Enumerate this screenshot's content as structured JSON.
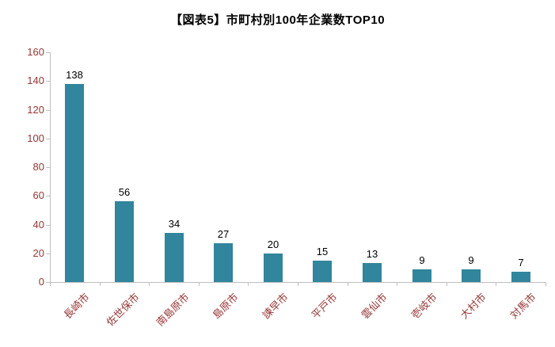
{
  "chart_data": {
    "type": "bar",
    "title": "【図表5】市町村別100年企業数TOP10",
    "categories": [
      "長崎市",
      "佐世保市",
      "南島原市",
      "島原市",
      "諫早市",
      "平戸市",
      "雲仙市",
      "壱岐市",
      "大村市",
      "対馬市"
    ],
    "values": [
      138,
      56,
      34,
      27,
      20,
      15,
      13,
      9,
      9,
      7
    ],
    "xlabel": "",
    "ylabel": "",
    "ylim": [
      0,
      160
    ],
    "ytick_step": 20,
    "grid": false,
    "legend": "none",
    "colors": {
      "bar": "#31859C",
      "axis_labels": "#953735",
      "value_labels": "#000000",
      "axis_line": "#bfbfbf"
    }
  }
}
